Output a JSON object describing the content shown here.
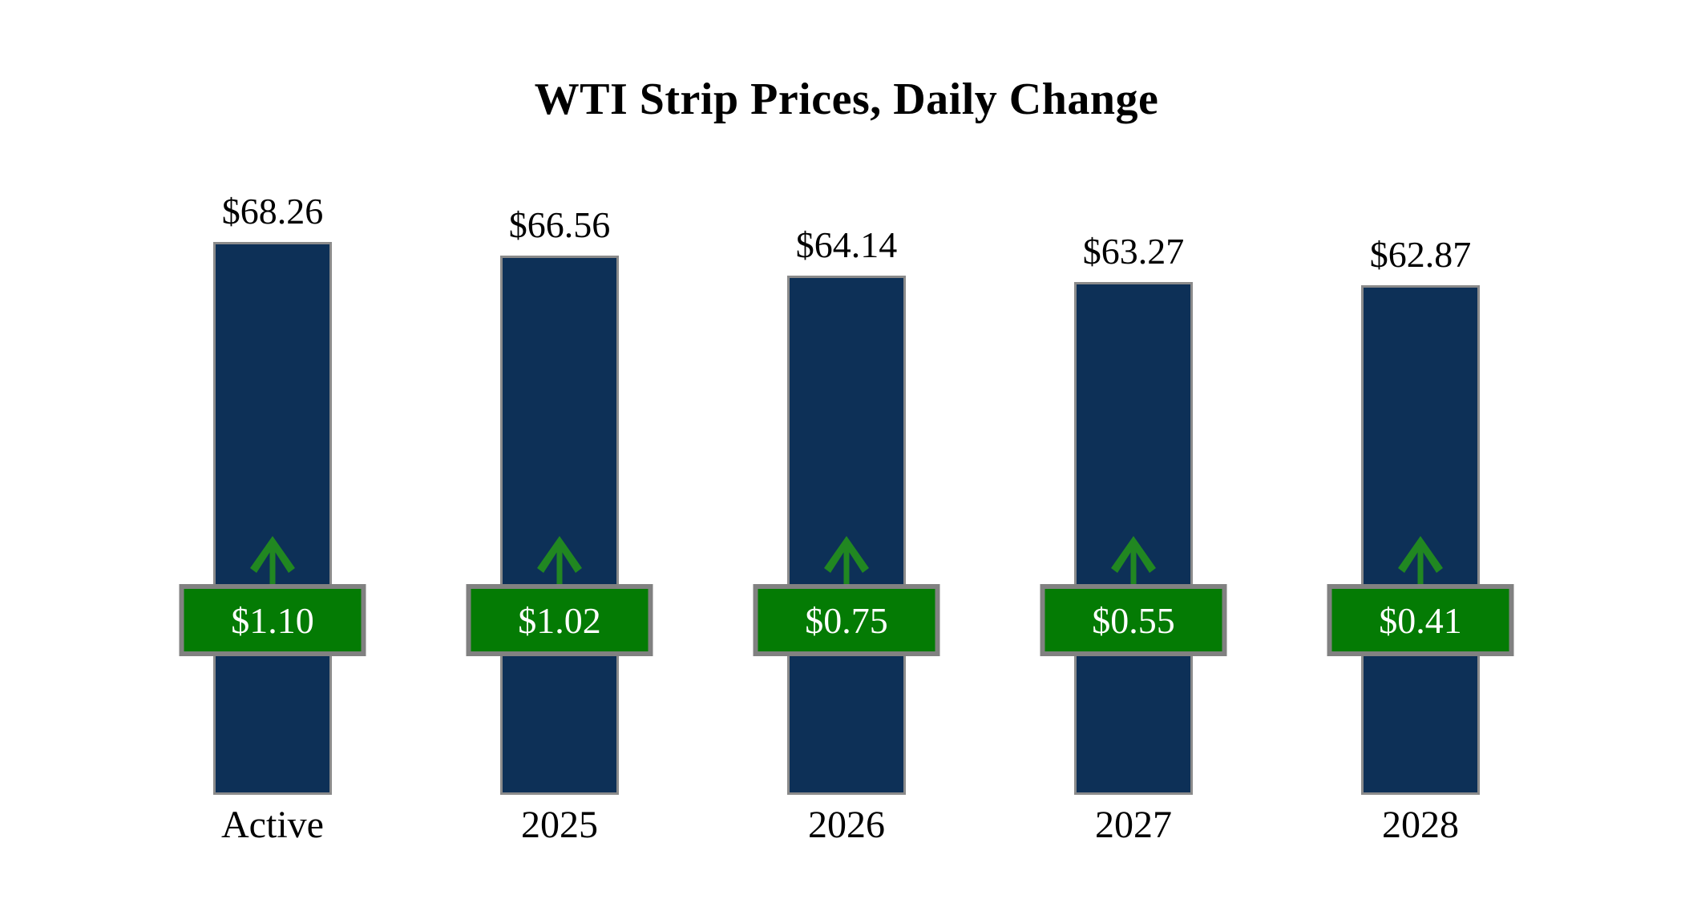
{
  "title": "WTI Strip Prices, Daily Change",
  "colors": {
    "background": "#FFFFFF",
    "bar_fill": "#0D3057",
    "bar_border": "#8B8B8B",
    "badge_fill": "#047B04",
    "badge_border": "#818181",
    "badge_text": "#FFFFFF",
    "arrow_green": "#218721",
    "label_text": "#000000"
  },
  "chart_data": {
    "type": "bar",
    "title": "WTI Strip Prices, Daily Change",
    "categories": [
      "Active",
      "2025",
      "2026",
      "2027",
      "2028"
    ],
    "series": [
      {
        "name": "WTI Strip Price ($/bbl)",
        "values": [
          68.26,
          66.56,
          64.14,
          63.27,
          62.87
        ],
        "labels": [
          "$68.26",
          "$66.56",
          "$64.14",
          "$63.27",
          "$62.87"
        ]
      },
      {
        "name": "Daily Change ($)",
        "values": [
          1.1,
          1.02,
          0.75,
          0.55,
          0.41
        ],
        "labels": [
          "$1.10",
          "$1.02",
          "$0.75",
          "$0.55",
          "$0.41"
        ],
        "direction": "up"
      }
    ],
    "ylim": [
      0,
      68.26
    ],
    "xlabel": "",
    "ylabel": "",
    "grid": false,
    "legend": "none",
    "annotations": "green up arrow on each bar indicates positive daily change"
  }
}
